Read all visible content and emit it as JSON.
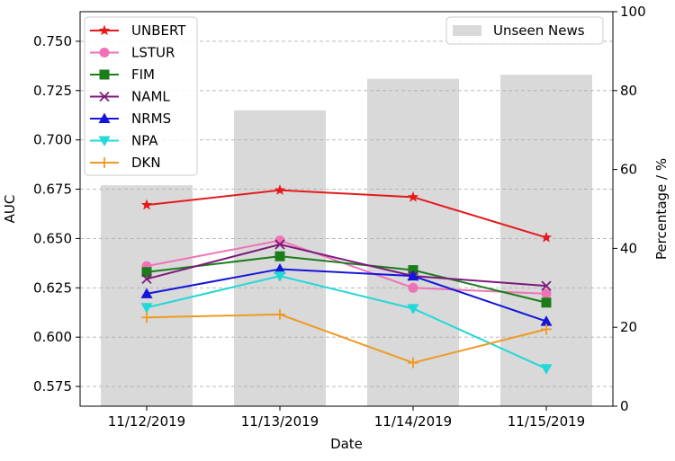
{
  "chart_data": {
    "type": "line",
    "title": "",
    "xlabel": "Date",
    "ylabel": "AUC",
    "y2label": "Percentage / %",
    "categories": [
      "11/12/2019",
      "11/13/2019",
      "11/14/2019",
      "11/15/2019"
    ],
    "ylim": [
      0.565,
      0.765
    ],
    "y_ticks": [
      0.575,
      0.6,
      0.625,
      0.65,
      0.675,
      0.7,
      0.725,
      0.75
    ],
    "y_tick_labels": [
      "0.575",
      "0.600",
      "0.625",
      "0.650",
      "0.675",
      "0.700",
      "0.725",
      "0.750"
    ],
    "y2lim": [
      0,
      100
    ],
    "y2_ticks": [
      0,
      20,
      40,
      60,
      80,
      100
    ],
    "y2_tick_labels": [
      "0",
      "20",
      "40",
      "60",
      "80",
      "100"
    ],
    "grid": "horizontal dashed",
    "legend_position": "top-left",
    "bars": {
      "name": "Unseen News",
      "values": [
        56,
        75,
        83,
        84
      ],
      "color": "#d9d9d9",
      "legend_position": "top-right"
    },
    "series": [
      {
        "name": "UNBERT",
        "values": [
          0.667,
          0.6745,
          0.671,
          0.6505
        ],
        "color": "#e41a1c",
        "marker": "star"
      },
      {
        "name": "LSTUR",
        "values": [
          0.636,
          0.649,
          0.625,
          0.622
        ],
        "color": "#f072b6",
        "marker": "circle"
      },
      {
        "name": "FIM",
        "values": [
          0.633,
          0.641,
          0.634,
          0.6175
        ],
        "color": "#1a7d1a",
        "marker": "square"
      },
      {
        "name": "NAML",
        "values": [
          0.6295,
          0.647,
          0.631,
          0.626
        ],
        "color": "#7b1a7b",
        "marker": "x"
      },
      {
        "name": "NRMS",
        "values": [
          0.622,
          0.6345,
          0.631,
          0.608
        ],
        "color": "#1515d8",
        "marker": "triangle-up"
      },
      {
        "name": "NPA",
        "values": [
          0.615,
          0.631,
          0.6145,
          0.584
        ],
        "color": "#22d8d8",
        "marker": "triangle-down"
      },
      {
        "name": "DKN",
        "values": [
          0.61,
          0.6115,
          0.587,
          0.604
        ],
        "color": "#ee9a22",
        "marker": "plus"
      }
    ]
  }
}
